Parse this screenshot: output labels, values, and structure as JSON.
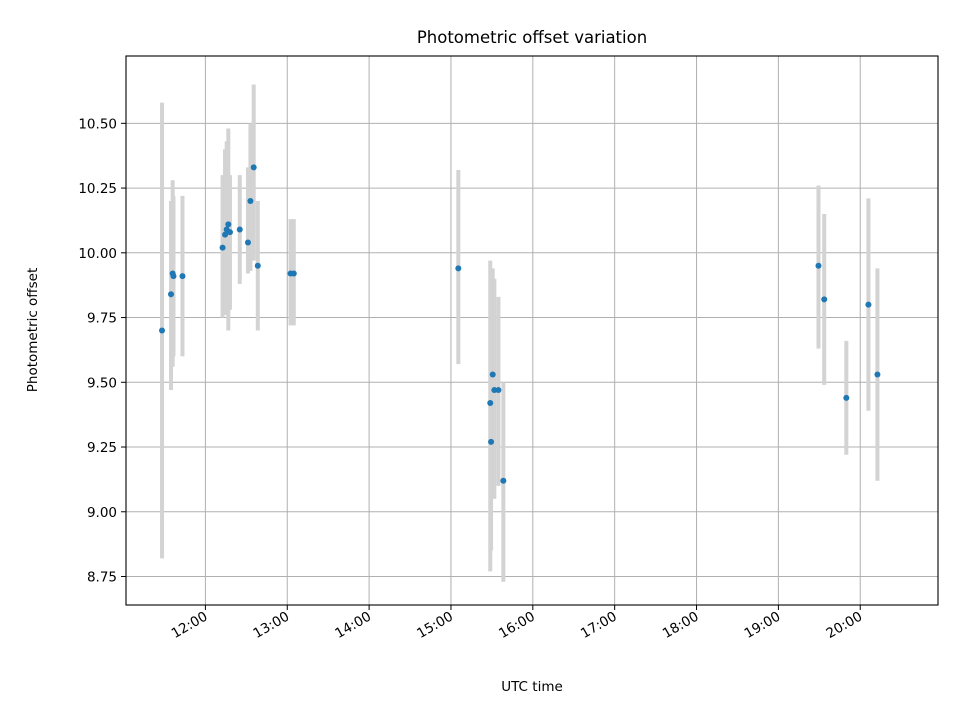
{
  "chart_data": {
    "type": "scatter",
    "title": "Photometric offset variation",
    "xlabel": "UTC time",
    "ylabel": "Photometric offset",
    "x_unit": "time of day (hours, UTC)",
    "xlim": [
      11.03,
      20.95
    ],
    "ylim": [
      8.64,
      10.76
    ],
    "x_ticks": [
      {
        "value": 12,
        "label": "12:00"
      },
      {
        "value": 13,
        "label": "13:00"
      },
      {
        "value": 14,
        "label": "14:00"
      },
      {
        "value": 15,
        "label": "15:00"
      },
      {
        "value": 16,
        "label": "16:00"
      },
      {
        "value": 17,
        "label": "17:00"
      },
      {
        "value": 18,
        "label": "18:00"
      },
      {
        "value": 19,
        "label": "19:00"
      },
      {
        "value": 20,
        "label": "20:00"
      }
    ],
    "y_ticks": [
      {
        "value": 8.75,
        "label": "8.75"
      },
      {
        "value": 9.0,
        "label": "9.00"
      },
      {
        "value": 9.25,
        "label": "9.25"
      },
      {
        "value": 9.5,
        "label": "9.50"
      },
      {
        "value": 9.75,
        "label": "9.75"
      },
      {
        "value": 10.0,
        "label": "10.00"
      },
      {
        "value": 10.25,
        "label": "10.25"
      },
      {
        "value": 10.5,
        "label": "10.50"
      }
    ],
    "grid": true,
    "x_tick_rotation": 30,
    "colors": {
      "point": "#1f77b4",
      "errorbar": "#d3d3d3",
      "grid": "#b0b0b0"
    },
    "points": [
      {
        "x": 11.47,
        "y": 9.7,
        "ylow": 8.82,
        "yhigh": 10.58
      },
      {
        "x": 11.58,
        "y": 9.84,
        "ylow": 9.47,
        "yhigh": 10.2
      },
      {
        "x": 11.6,
        "y": 9.92,
        "ylow": 9.56,
        "yhigh": 10.28
      },
      {
        "x": 11.61,
        "y": 9.91,
        "ylow": 9.6,
        "yhigh": 10.22
      },
      {
        "x": 11.72,
        "y": 9.91,
        "ylow": 9.6,
        "yhigh": 10.22
      },
      {
        "x": 12.21,
        "y": 10.02,
        "ylow": 9.75,
        "yhigh": 10.3
      },
      {
        "x": 12.24,
        "y": 10.07,
        "ylow": 9.76,
        "yhigh": 10.4
      },
      {
        "x": 12.26,
        "y": 10.09,
        "ylow": 9.78,
        "yhigh": 10.43
      },
      {
        "x": 12.28,
        "y": 10.11,
        "ylow": 9.7,
        "yhigh": 10.48
      },
      {
        "x": 12.3,
        "y": 10.08,
        "ylow": 9.78,
        "yhigh": 10.3
      },
      {
        "x": 12.42,
        "y": 10.09,
        "ylow": 9.88,
        "yhigh": 10.3
      },
      {
        "x": 12.52,
        "y": 10.04,
        "ylow": 9.92,
        "yhigh": 10.33
      },
      {
        "x": 12.55,
        "y": 10.2,
        "ylow": 9.93,
        "yhigh": 10.5
      },
      {
        "x": 12.59,
        "y": 10.33,
        "ylow": 9.97,
        "yhigh": 10.65
      },
      {
        "x": 12.64,
        "y": 9.95,
        "ylow": 9.7,
        "yhigh": 10.2
      },
      {
        "x": 13.04,
        "y": 9.92,
        "ylow": 9.72,
        "yhigh": 10.13
      },
      {
        "x": 13.08,
        "y": 9.92,
        "ylow": 9.72,
        "yhigh": 10.13
      },
      {
        "x": 15.09,
        "y": 9.94,
        "ylow": 9.57,
        "yhigh": 10.32
      },
      {
        "x": 15.48,
        "y": 9.42,
        "ylow": 8.77,
        "yhigh": 9.97
      },
      {
        "x": 15.49,
        "y": 9.27,
        "ylow": 8.85,
        "yhigh": 9.7
      },
      {
        "x": 15.51,
        "y": 9.53,
        "ylow": 9.12,
        "yhigh": 9.94
      },
      {
        "x": 15.53,
        "y": 9.47,
        "ylow": 9.05,
        "yhigh": 9.9
      },
      {
        "x": 15.58,
        "y": 9.47,
        "ylow": 9.1,
        "yhigh": 9.83
      },
      {
        "x": 15.64,
        "y": 9.12,
        "ylow": 8.73,
        "yhigh": 9.5
      },
      {
        "x": 19.49,
        "y": 9.95,
        "ylow": 9.63,
        "yhigh": 10.26
      },
      {
        "x": 19.56,
        "y": 9.82,
        "ylow": 9.49,
        "yhigh": 10.15
      },
      {
        "x": 19.83,
        "y": 9.44,
        "ylow": 9.22,
        "yhigh": 9.66
      },
      {
        "x": 20.1,
        "y": 9.8,
        "ylow": 9.39,
        "yhigh": 10.21
      },
      {
        "x": 20.21,
        "y": 9.53,
        "ylow": 9.12,
        "yhigh": 9.94
      }
    ]
  }
}
